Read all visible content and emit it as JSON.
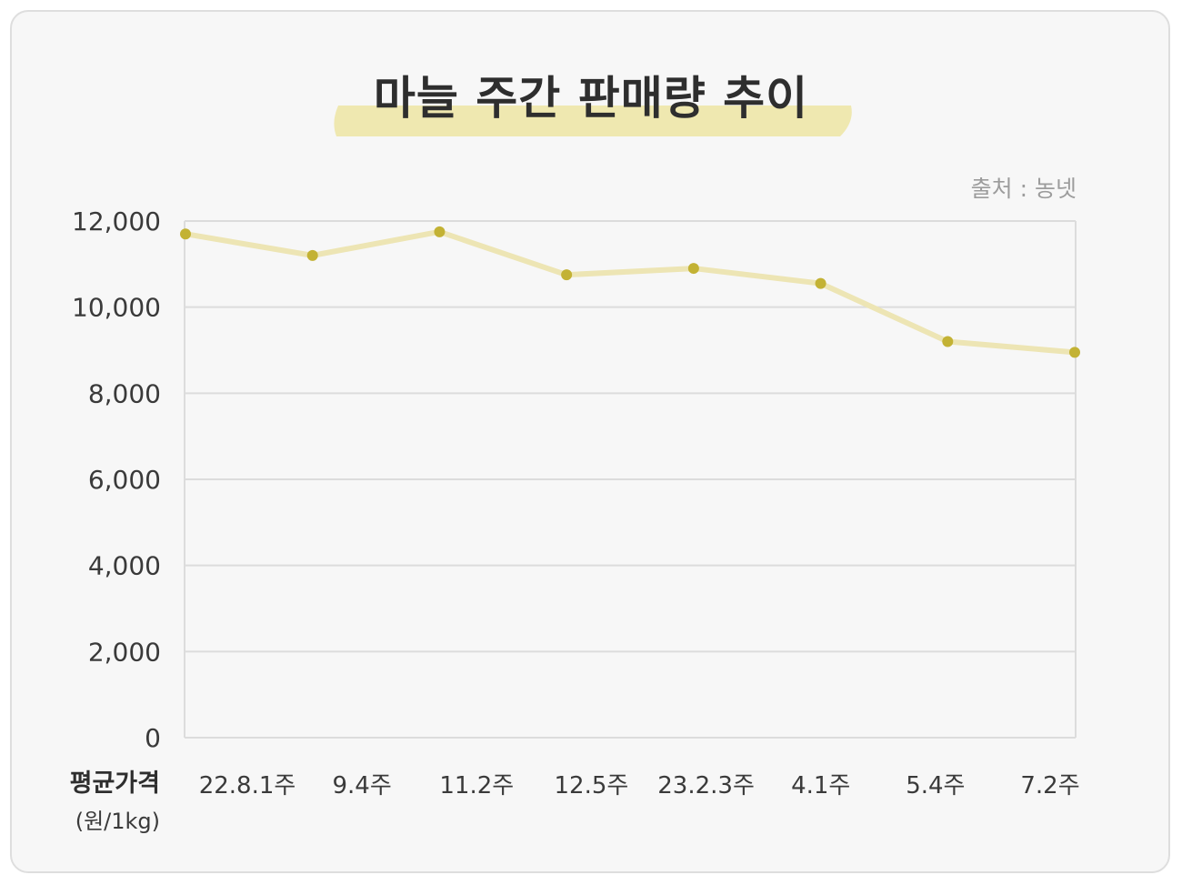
{
  "title": "마늘 주간 판매량 추이",
  "source": "출처 : 농넷",
  "colors": {
    "line": "#ede5b4",
    "point": "#c3b234",
    "highlight": "#efe8b0",
    "grid": "#dcdcdc"
  },
  "chart_data": {
    "type": "line",
    "title": "마늘 주간 판매량 추이",
    "ylabel": "평균가격",
    "yunit": "(원/1kg)",
    "ylim": [
      0,
      12000
    ],
    "yticks": [
      0,
      2000,
      4000,
      6000,
      8000,
      10000,
      12000
    ],
    "ytick_labels": [
      "0",
      "2,000",
      "4,000",
      "6,000",
      "8,000",
      "10,000",
      "12,000"
    ],
    "categories": [
      "22.8.1주",
      "9.4주",
      "11.2주",
      "12.5주",
      "23.2.3주",
      "4.1주",
      "5.4주",
      "7.2주"
    ],
    "values": [
      11700,
      11200,
      11750,
      10750,
      10900,
      10550,
      9200,
      8950
    ],
    "grid": true
  }
}
